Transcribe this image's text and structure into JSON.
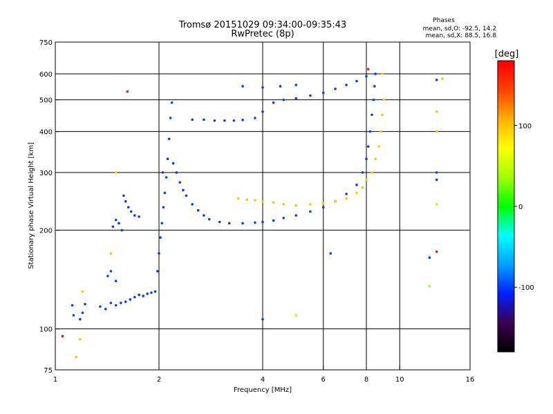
{
  "chart_data": {
    "type": "scatter",
    "title": "Tromsø 20151029 09:34:00-09:35:43",
    "subtitle": "RwPretec (8p)",
    "xlabel": "Frequency [MHz]",
    "ylabel": "Stationary phase Virtual Height [km]",
    "x_scale": "log",
    "y_scale": "log",
    "xlim": [
      1,
      16
    ],
    "ylim": [
      75,
      750
    ],
    "x_ticks": [
      1,
      2,
      4,
      6,
      8,
      10,
      16
    ],
    "y_ticks": [
      75,
      100,
      200,
      300,
      400,
      500,
      600,
      750
    ],
    "grid_x": [
      2,
      4,
      6,
      8,
      10
    ],
    "grid_y": [
      100,
      200,
      300,
      400,
      500,
      600
    ],
    "stats": {
      "header": "Phases",
      "line_o": "mean, sd,O: -92.5, 14.2",
      "line_x": "mean, sd,X:  88.5, 16.8"
    },
    "colorbar": {
      "label": "[deg]",
      "range": [
        -180,
        180
      ],
      "ticks": [
        100,
        0,
        -100
      ],
      "stops": [
        "#000000",
        "#3c0050",
        "#0020ff",
        "#00a0ff",
        "#00ffff",
        "#00ff00",
        "#a0ff00",
        "#ffff00",
        "#ffb000",
        "#ff4000",
        "#ff0000"
      ]
    },
    "series": [
      {
        "phase": -100,
        "points": [
          [
            1.12,
            118
          ],
          [
            1.13,
            110
          ],
          [
            1.18,
            107
          ],
          [
            1.2,
            112
          ],
          [
            1.22,
            119
          ],
          [
            1.35,
            117
          ],
          [
            1.4,
            115
          ],
          [
            1.45,
            120
          ],
          [
            1.5,
            118
          ],
          [
            1.55,
            120
          ],
          [
            1.6,
            121
          ],
          [
            1.65,
            123
          ],
          [
            1.7,
            125
          ],
          [
            1.75,
            127
          ],
          [
            1.8,
            126
          ],
          [
            1.85,
            128
          ],
          [
            1.9,
            129
          ],
          [
            1.95,
            130
          ],
          [
            1.42,
            145
          ],
          [
            1.45,
            150
          ],
          [
            1.5,
            140
          ],
          [
            1.47,
            205
          ],
          [
            1.5,
            215
          ],
          [
            1.53,
            210
          ],
          [
            1.56,
            200
          ],
          [
            1.58,
            255
          ],
          [
            1.6,
            245
          ],
          [
            1.63,
            235
          ],
          [
            1.66,
            228
          ],
          [
            1.7,
            222
          ],
          [
            1.75,
            220
          ],
          [
            1.98,
            150
          ],
          [
            2.0,
            170
          ],
          [
            2.02,
            190
          ],
          [
            2.04,
            210
          ],
          [
            2.06,
            235
          ],
          [
            2.08,
            260
          ],
          [
            2.1,
            290
          ],
          [
            2.12,
            330
          ],
          [
            2.14,
            380
          ],
          [
            2.16,
            440
          ],
          [
            2.18,
            490
          ],
          [
            2.05,
            300
          ],
          [
            2.2,
            320
          ],
          [
            2.25,
            300
          ],
          [
            2.3,
            280
          ],
          [
            2.35,
            265
          ],
          [
            2.4,
            255
          ],
          [
            2.5,
            240
          ],
          [
            2.6,
            230
          ],
          [
            2.7,
            222
          ],
          [
            2.8,
            216
          ],
          [
            3.0,
            212
          ],
          [
            3.2,
            210
          ],
          [
            3.5,
            210
          ],
          [
            3.8,
            211
          ],
          [
            4.0,
            212
          ],
          [
            4.3,
            214
          ],
          [
            4.6,
            218
          ],
          [
            5.0,
            222
          ],
          [
            5.5,
            228
          ],
          [
            6.0,
            235
          ],
          [
            6.5,
            245
          ],
          [
            7.0,
            258
          ],
          [
            7.5,
            275
          ],
          [
            7.8,
            300
          ],
          [
            8.0,
            330
          ],
          [
            8.1,
            360
          ],
          [
            8.2,
            400
          ],
          [
            8.3,
            450
          ],
          [
            8.4,
            500
          ],
          [
            8.45,
            550
          ],
          [
            2.5,
            435
          ],
          [
            2.7,
            435
          ],
          [
            2.9,
            432
          ],
          [
            3.1,
            432
          ],
          [
            3.3,
            432
          ],
          [
            3.5,
            434
          ],
          [
            3.8,
            440
          ],
          [
            4.0,
            460
          ],
          [
            4.3,
            490
          ],
          [
            4.6,
            500
          ],
          [
            5.0,
            505
          ],
          [
            5.5,
            515
          ],
          [
            6.0,
            525
          ],
          [
            6.5,
            540
          ],
          [
            7.0,
            555
          ],
          [
            7.5,
            570
          ],
          [
            8.0,
            590
          ],
          [
            8.5,
            600
          ],
          [
            3.5,
            550
          ],
          [
            4.0,
            545
          ],
          [
            4.5,
            550
          ],
          [
            5.0,
            555
          ],
          [
            4.0,
            107
          ],
          [
            12.8,
            300
          ],
          [
            12.8,
            285
          ],
          [
            12.2,
            165
          ],
          [
            12.8,
            575
          ],
          [
            6.3,
            170
          ]
        ]
      },
      {
        "phase": 100,
        "points": [
          [
            3.4,
            250
          ],
          [
            3.6,
            248
          ],
          [
            3.8,
            247
          ],
          [
            4.0,
            245
          ],
          [
            4.3,
            243
          ],
          [
            4.6,
            240
          ],
          [
            5.0,
            238
          ],
          [
            5.5,
            240
          ],
          [
            6.0,
            242
          ],
          [
            6.5,
            245
          ],
          [
            7.0,
            250
          ],
          [
            7.5,
            260
          ],
          [
            7.8,
            270
          ],
          [
            8.0,
            285
          ],
          [
            8.3,
            300
          ],
          [
            8.5,
            330
          ],
          [
            8.7,
            360
          ],
          [
            8.8,
            400
          ],
          [
            8.9,
            450
          ],
          [
            9.0,
            500
          ],
          [
            1.5,
            300
          ],
          [
            1.45,
            170
          ],
          [
            1.2,
            130
          ],
          [
            1.15,
            82
          ],
          [
            1.18,
            93
          ],
          [
            13.3,
            580
          ],
          [
            12.8,
            460
          ],
          [
            12.8,
            400
          ],
          [
            8.9,
            600
          ]
        ]
      },
      {
        "phase": 40,
        "points": [
          [
            12.2,
            135
          ],
          [
            5.0,
            110
          ],
          [
            12.8,
            240
          ]
        ]
      },
      {
        "phase": 170,
        "points": [
          [
            1.62,
            530
          ],
          [
            8.1,
            620
          ],
          [
            12.8,
            172
          ],
          [
            1.05,
            95
          ]
        ]
      }
    ]
  }
}
